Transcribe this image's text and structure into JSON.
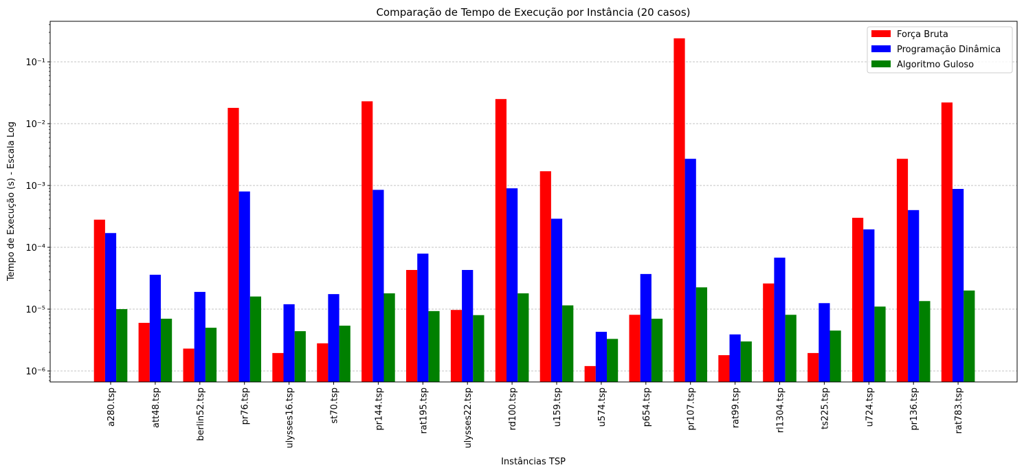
{
  "chart_data": {
    "type": "bar",
    "title": "Comparação de Tempo de Execução por Instância (20 casos)",
    "xlabel": "Instâncias TSP",
    "ylabel": "Tempo de Execução (s) - Escala Log",
    "yscale": "log",
    "ylim": [
      6.5e-07,
      0.45
    ],
    "ytick_labels": [
      "10⁻⁶",
      "10⁻⁵",
      "10⁻⁴",
      "10⁻³",
      "10⁻²",
      "10⁻¹"
    ],
    "ytick_values": [
      1e-06,
      1e-05,
      0.0001,
      0.001,
      0.01,
      0.1
    ],
    "grid": "y, dashed",
    "legend_position": "top-right",
    "categories": [
      "a280.tsp",
      "att48.tsp",
      "berlin52.tsp",
      "pr76.tsp",
      "ulysses16.tsp",
      "st70.tsp",
      "pr144.tsp",
      "rat195.tsp",
      "ulysses22.tsp",
      "rd100.tsp",
      "u159.tsp",
      "u574.tsp",
      "p654.tsp",
      "pr107.tsp",
      "rat99.tsp",
      "rl1304.tsp",
      "ts225.tsp",
      "u724.tsp",
      "pr136.tsp",
      "rat783.tsp"
    ],
    "series": [
      {
        "name": "Força Bruta",
        "color": "#ff0000",
        "values": [
          0.00028,
          6e-06,
          2.3e-06,
          0.018,
          1.95e-06,
          2.8e-06,
          0.023,
          4.3e-05,
          9.7e-06,
          0.025,
          0.0017,
          1.2e-06,
          8.1e-06,
          0.24,
          1.8e-06,
          2.6e-05,
          1.95e-06,
          0.0003,
          0.0027,
          0.022
        ]
      },
      {
        "name": "Programação Dinâmica",
        "color": "#0000ff",
        "values": [
          0.00017,
          3.6e-05,
          1.9e-05,
          0.0008,
          1.2e-05,
          1.75e-05,
          0.00085,
          7.9e-05,
          4.3e-05,
          0.0009,
          0.00029,
          4.3e-06,
          3.7e-05,
          0.0027,
          3.9e-06,
          6.8e-05,
          1.25e-05,
          0.000195,
          0.0004,
          0.00088
        ]
      },
      {
        "name": "Algoritmo Guloso",
        "color": "#008000",
        "values": [
          1e-05,
          7e-06,
          5e-06,
          1.6e-05,
          4.4e-06,
          5.4e-06,
          1.8e-05,
          9.3e-06,
          8e-06,
          1.8e-05,
          1.15e-05,
          3.3e-06,
          7e-06,
          2.25e-05,
          3e-06,
          8.1e-06,
          4.5e-06,
          1.1e-05,
          1.35e-05,
          2e-05
        ]
      }
    ]
  }
}
